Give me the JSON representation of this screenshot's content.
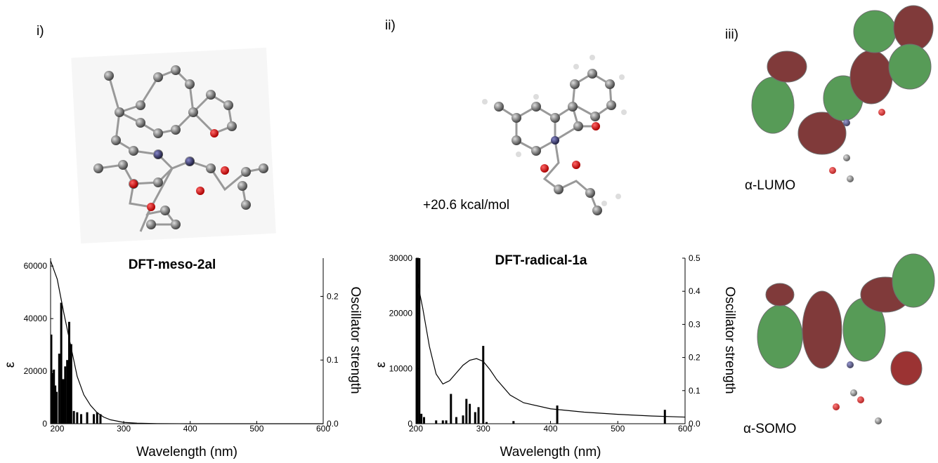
{
  "panel_labels": [
    "i)",
    "ii)",
    "iii)"
  ],
  "energy_label": "+20.6 kcal/mol",
  "orbital_labels": [
    "α-LUMO",
    "α-SOMO"
  ],
  "chart_data": [
    {
      "type": "line",
      "title": "DFT-meso-2al",
      "x_label": "Wavelength (nm)",
      "y_label": "ε",
      "y2_label": "Oscillator strength",
      "xlim": [
        190,
        600
      ],
      "xticks": [
        200,
        300,
        400,
        500,
        600
      ],
      "ylim": [
        0,
        63000
      ],
      "yticks": [
        0,
        20000,
        40000,
        60000
      ],
      "y2lim": [
        0,
        0.26
      ],
      "y2ticks": [
        {
          "value": 0,
          "label": "0.0"
        },
        0.1,
        0.2
      ],
      "series": [
        {
          "type": "line",
          "color": "#000000",
          "x": [
            190,
            200,
            210,
            220,
            230,
            240,
            250,
            260,
            270,
            280,
            300,
            320,
            350,
            400,
            500,
            600
          ],
          "values": [
            62000,
            55000,
            42000,
            30000,
            18000,
            11000,
            7000,
            4200,
            2500,
            1500,
            500,
            200,
            50,
            0,
            0,
            0
          ]
        },
        {
          "type": "bar",
          "axis": "y2",
          "color": "#000000",
          "x": [
            191,
            193,
            195,
            197,
            199,
            203,
            206,
            209,
            212,
            215,
            218,
            221,
            225,
            230,
            236,
            245,
            255,
            260,
            265
          ],
          "values": [
            0.14,
            0.08,
            0.085,
            0.06,
            0.05,
            0.11,
            0.19,
            0.07,
            0.09,
            0.1,
            0.16,
            0.125,
            0.02,
            0.018,
            0.015,
            0.018,
            0.015,
            0.018,
            0.015
          ]
        }
      ]
    },
    {
      "type": "line",
      "title": "DFT-radical-1a",
      "x_label": "Wavelength (nm)",
      "y_label": "ε",
      "y2_label": "Oscillator strength",
      "xlim": [
        200,
        600
      ],
      "xticks": [
        200,
        300,
        400,
        500,
        600
      ],
      "ylim": [
        0,
        30000
      ],
      "yticks": [
        0,
        10000,
        20000,
        30000
      ],
      "y2lim": [
        0,
        0.5
      ],
      "y2ticks": [
        {
          "value": 0,
          "label": "0.0"
        },
        0.1,
        0.2,
        0.3,
        0.4,
        0.5
      ],
      "series": [
        {
          "type": "line",
          "color": "#000000",
          "x": [
            200,
            210,
            220,
            230,
            240,
            250,
            260,
            270,
            280,
            290,
            300,
            310,
            320,
            340,
            360,
            400,
            450,
            500,
            550,
            600
          ],
          "values": [
            27000,
            21000,
            14000,
            9000,
            7200,
            7800,
            9200,
            10600,
            11500,
            11800,
            11300,
            9800,
            8000,
            5200,
            3800,
            2700,
            2100,
            1700,
            1400,
            1200
          ]
        },
        {
          "type": "bar",
          "axis": "y2",
          "color": "#000000",
          "x": [
            200,
            202,
            205,
            208,
            212,
            230,
            240,
            245,
            252,
            260,
            270,
            275,
            280,
            288,
            293,
            300,
            305,
            345,
            410,
            570
          ],
          "values": [
            0.08,
            0.5,
            0.5,
            0.03,
            0.02,
            0.01,
            0.01,
            0.01,
            0.09,
            0.02,
            0.025,
            0.075,
            0.06,
            0.035,
            0.05,
            0.235,
            0.005,
            0.008,
            0.055,
            0.042
          ]
        }
      ]
    }
  ]
}
